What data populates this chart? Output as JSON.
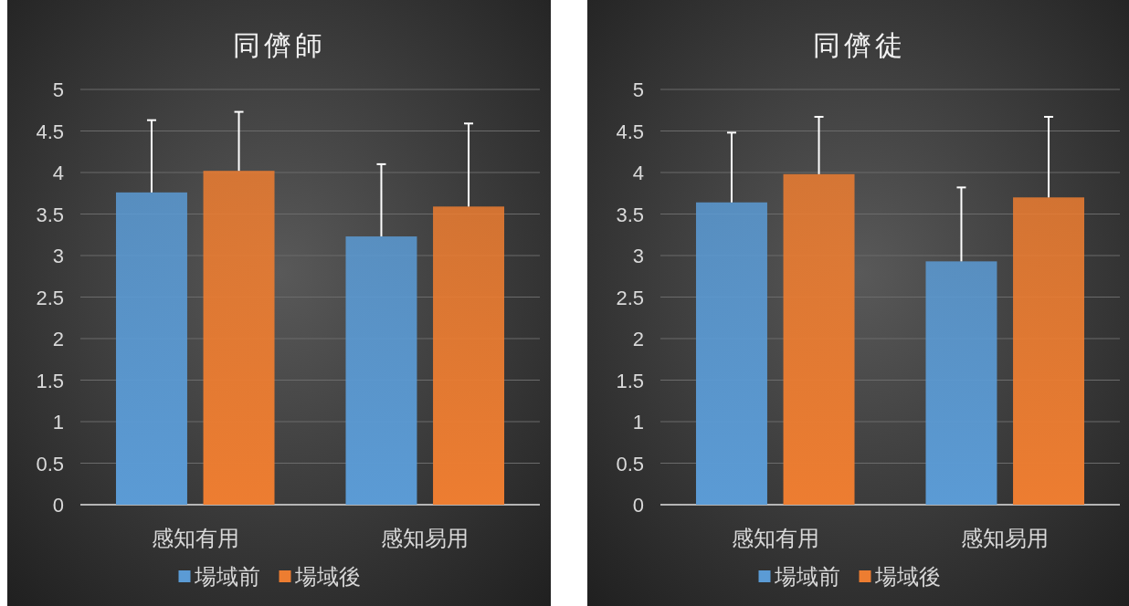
{
  "chart_data": [
    {
      "type": "bar",
      "title": "同儕師",
      "categories": [
        "感知有用",
        "感知易用"
      ],
      "ylim": [
        0,
        5
      ],
      "yticks": [
        0,
        0.5,
        1,
        1.5,
        2,
        2.5,
        3,
        3.5,
        4,
        4.5,
        5
      ],
      "grid": "y",
      "legend": "bottom",
      "series": [
        {
          "name": "場域前",
          "color": "#5b9bd5",
          "values": [
            3.76,
            3.23
          ],
          "errors": [
            [
              3.76,
              4.63
            ],
            [
              3.23,
              4.1
            ]
          ]
        },
        {
          "name": "場域後",
          "color": "#ed7d31",
          "values": [
            4.02,
            3.59
          ],
          "errors": [
            [
              4.02,
              4.73
            ],
            [
              3.59,
              4.59
            ]
          ]
        }
      ]
    },
    {
      "type": "bar",
      "title": "同儕徒",
      "categories": [
        "感知有用",
        "感知易用"
      ],
      "ylim": [
        0,
        5
      ],
      "yticks": [
        0,
        0.5,
        1,
        1.5,
        2,
        2.5,
        3,
        3.5,
        4,
        4.5,
        5
      ],
      "grid": "y",
      "legend": "bottom",
      "series": [
        {
          "name": "場域前",
          "color": "#5b9bd5",
          "values": [
            3.64,
            2.93
          ],
          "errors": [
            [
              3.64,
              4.48
            ],
            [
              2.93,
              3.82
            ]
          ]
        },
        {
          "name": "場域後",
          "color": "#ed7d31",
          "values": [
            3.98,
            3.7
          ],
          "errors": [
            [
              3.98,
              4.67
            ],
            [
              3.7,
              4.67
            ]
          ]
        }
      ]
    }
  ]
}
